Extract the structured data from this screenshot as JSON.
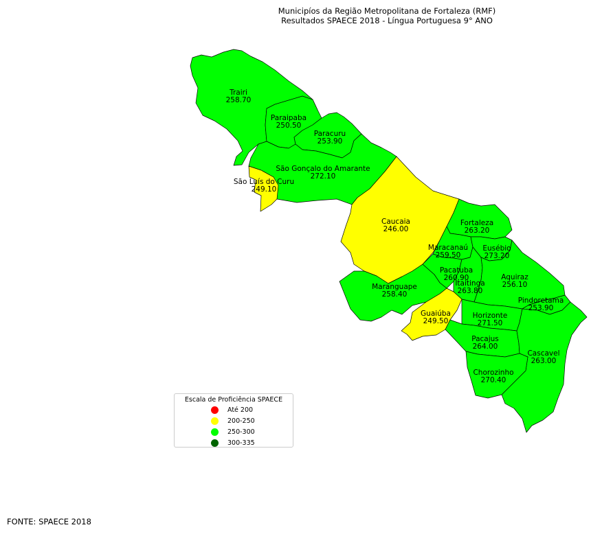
{
  "title_line1": "Municipíos da Região Metropolitana de Fortaleza (RMF)",
  "title_line2": "Resultados SPAECE 2018 - Língua Portuguesa 9° ANO",
  "legend": {
    "title": "Escala de Proficiência SPAECE",
    "items": [
      {
        "label": "Até 200",
        "color": "#ff0000"
      },
      {
        "label": "200-250",
        "color": "#ffff00"
      },
      {
        "label": "250-300",
        "color": "#00ff00"
      },
      {
        "label": "300-335",
        "color": "#006400"
      }
    ]
  },
  "source": "FONTE: SPAECE 2018",
  "municipalities": [
    {
      "name": "Trairi",
      "score": "258.70",
      "color": "#00ff00"
    },
    {
      "name": "Paraipaba",
      "score": "250.50",
      "color": "#00ff00"
    },
    {
      "name": "Paracuru",
      "score": "253.90",
      "color": "#00ff00"
    },
    {
      "name": "São Gonçalo do Amarante",
      "score": "272.10",
      "color": "#00ff00"
    },
    {
      "name": "São Luís do Curu",
      "score": "249.10",
      "color": "#ffff00"
    },
    {
      "name": "Caucaia",
      "score": "246.00",
      "color": "#ffff00"
    },
    {
      "name": "Fortaleza",
      "score": "263.20",
      "color": "#00ff00"
    },
    {
      "name": "Maracanaú",
      "score": "259.50",
      "color": "#00ff00"
    },
    {
      "name": "Eusébio",
      "score": "273.20",
      "color": "#00ff00"
    },
    {
      "name": "Pacatuba",
      "score": "260.90",
      "color": "#00ff00"
    },
    {
      "name": "Aquiraz",
      "score": "256.10",
      "color": "#00ff00"
    },
    {
      "name": "Itaitinga",
      "score": "263.80",
      "color": "#00ff00"
    },
    {
      "name": "Maranguape",
      "score": "258.40",
      "color": "#00ff00"
    },
    {
      "name": "Pindoretama",
      "score": "253.90",
      "color": "#00ff00"
    },
    {
      "name": "Guaiúba",
      "score": "249.50",
      "color": "#ffff00"
    },
    {
      "name": "Horizonte",
      "score": "271.50",
      "color": "#00ff00"
    },
    {
      "name": "Pacajus",
      "score": "264.00",
      "color": "#00ff00"
    },
    {
      "name": "Cascavel",
      "score": "263.00",
      "color": "#00ff00"
    },
    {
      "name": "Chorozinho",
      "score": "270.40",
      "color": "#00ff00"
    }
  ]
}
